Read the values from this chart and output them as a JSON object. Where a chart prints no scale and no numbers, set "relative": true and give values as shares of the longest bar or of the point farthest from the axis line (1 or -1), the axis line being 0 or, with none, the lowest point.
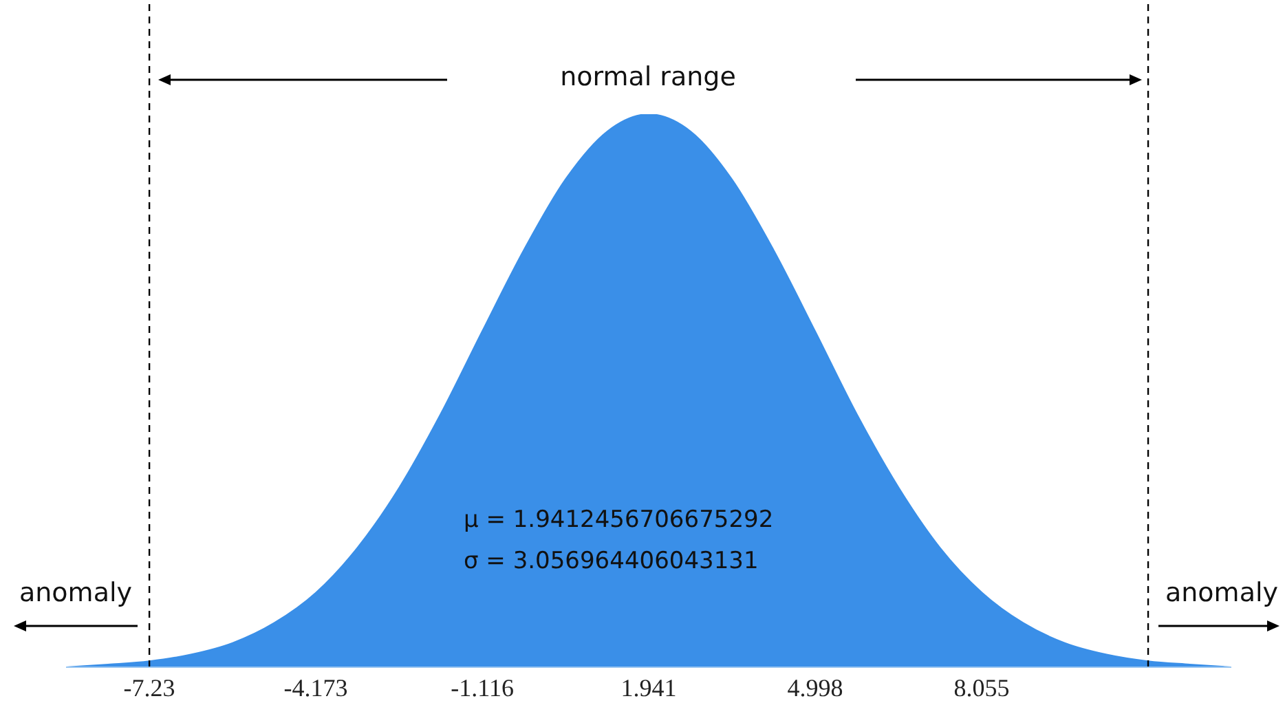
{
  "chart_data": {
    "type": "area",
    "relative": true,
    "x": [
      -8.76,
      -7.99,
      -7.23,
      -6.47,
      -5.7,
      -4.94,
      -4.17,
      -3.41,
      -2.64,
      -1.88,
      -1.12,
      -0.35,
      0.41,
      1.18,
      1.94,
      2.71,
      3.47,
      4.23,
      5.0,
      5.76,
      6.53,
      7.29,
      8.06,
      8.82,
      9.58,
      10.35,
      11.11,
      11.88,
      12.64
    ],
    "series": [
      {
        "color": "#3a8fe8",
        "values": [
          0,
          0.005,
          0.011,
          0.023,
          0.044,
          0.08,
          0.135,
          0.216,
          0.325,
          0.458,
          0.607,
          0.755,
          0.882,
          0.969,
          1,
          0.969,
          0.882,
          0.755,
          0.607,
          0.458,
          0.325,
          0.216,
          0.135,
          0.08,
          0.044,
          0.023,
          0.011,
          0.005,
          0
        ]
      }
    ],
    "xlim": [
      -8.76,
      12.64
    ],
    "xticks": [
      -7.23,
      -4.173,
      -1.116,
      1.941,
      4.998,
      8.055
    ],
    "ref_lines": [
      {
        "axis": "x",
        "value": -7.23,
        "color": "#000000",
        "line_style": "dashed"
      },
      {
        "axis": "x",
        "value": 11.112,
        "color": "#000000",
        "line_style": "dashed"
      }
    ],
    "annotations": [
      "normal range",
      "anomaly",
      "anomaly",
      "μ =  1.9412456706675292",
      "σ =  3.056964406043131"
    ]
  }
}
